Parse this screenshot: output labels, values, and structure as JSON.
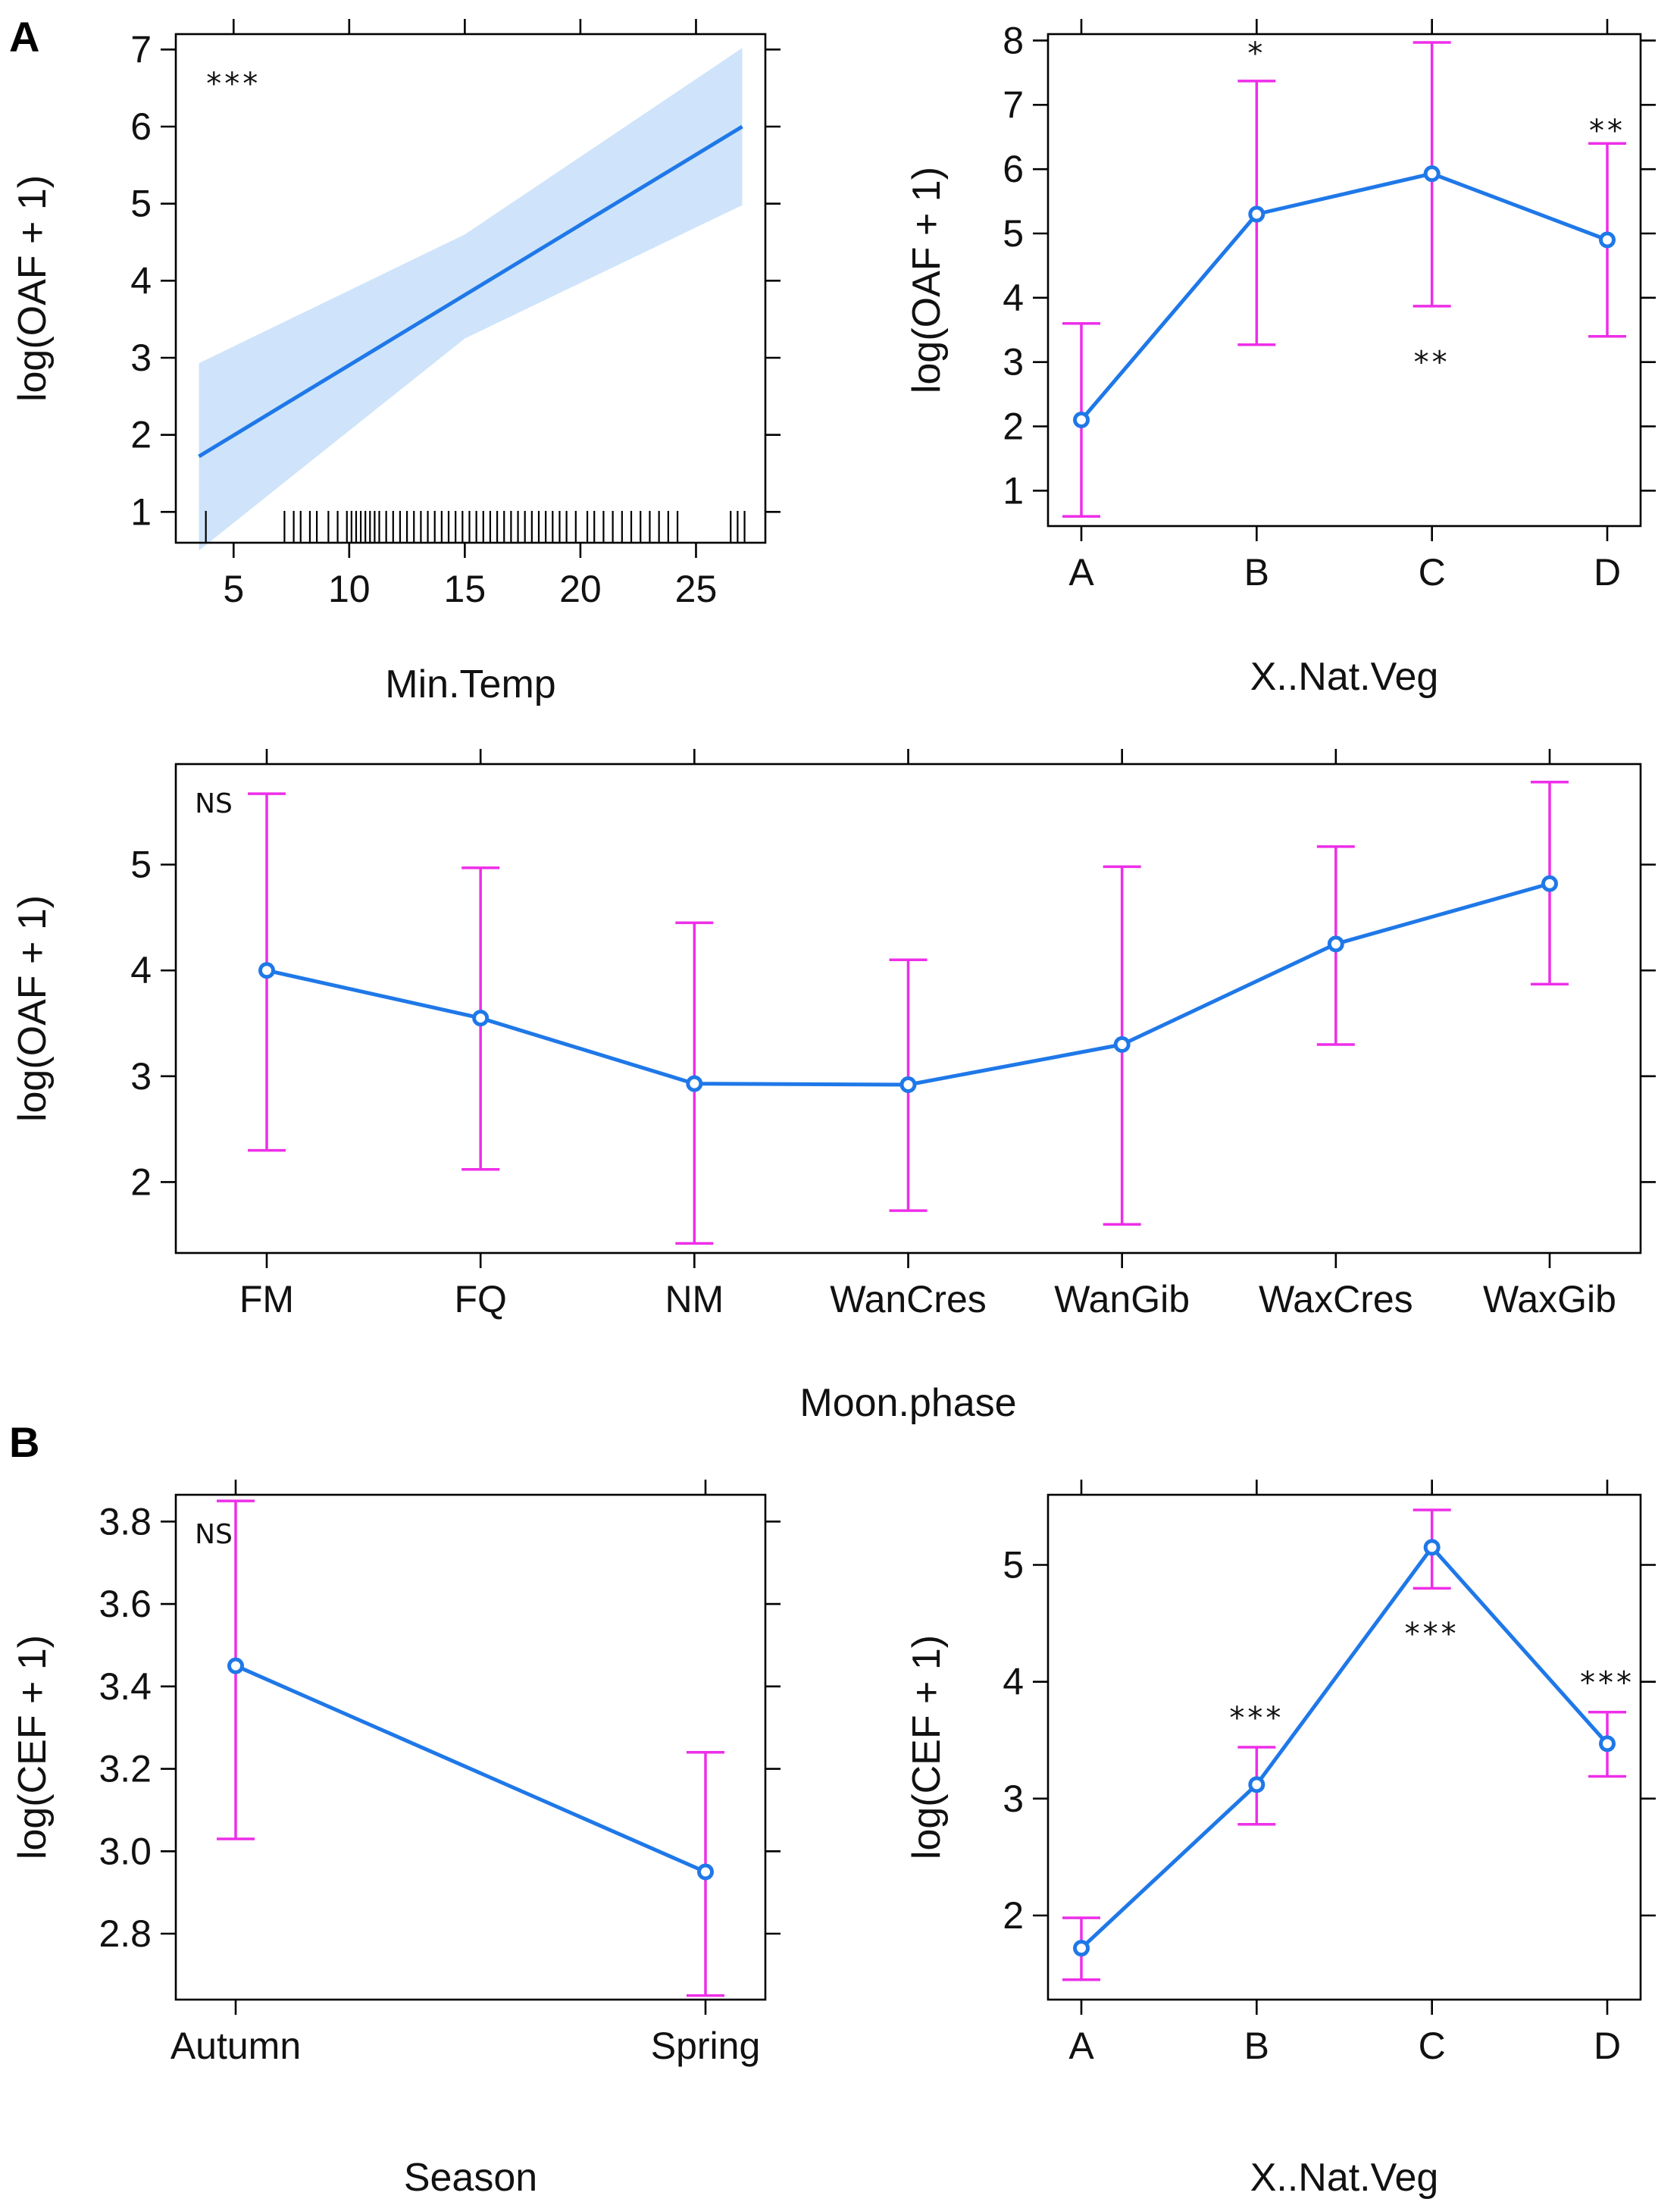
{
  "figure": {
    "panel_labels": [
      "A",
      "B"
    ]
  },
  "colors": {
    "line": "#1f78e8",
    "band": "#cfe4fa",
    "errorbar": "#ee2ee8",
    "axis": "#000000",
    "rug": "#000000"
  },
  "chart_data": [
    {
      "id": "p1",
      "type": "line",
      "title": "",
      "xlabel": "Min.Temp",
      "ylabel": "log(OAF + 1)",
      "xlim": [
        2.5,
        28
      ],
      "ylim": [
        0.6,
        7.2
      ],
      "xticks": [
        5,
        10,
        15,
        20,
        25
      ],
      "yticks": [
        1,
        2,
        3,
        4,
        5,
        6,
        7
      ],
      "line": {
        "x": [
          3.5,
          27
        ],
        "y": [
          1.72,
          6.0
        ]
      },
      "band": {
        "x": [
          3.5,
          15,
          27
        ],
        "lower": [
          0.5,
          3.25,
          4.98
        ],
        "upper": [
          2.93,
          4.6,
          7.02
        ]
      },
      "rug": [
        3.8,
        7.2,
        7.6,
        7.9,
        8.3,
        8.6,
        9.1,
        9.5,
        9.9,
        10.1,
        10.3,
        10.5,
        10.7,
        10.9,
        11.1,
        11.3,
        11.6,
        11.9,
        12.2,
        12.5,
        12.8,
        13.1,
        13.4,
        13.7,
        14.0,
        14.3,
        14.6,
        14.9,
        15.2,
        15.5,
        15.8,
        16.1,
        16.4,
        16.7,
        17.0,
        17.3,
        17.6,
        17.9,
        18.2,
        18.5,
        18.8,
        19.1,
        19.4,
        19.8,
        20.3,
        20.6,
        21.0,
        21.4,
        21.8,
        22.2,
        22.6,
        23.0,
        23.4,
        23.8,
        24.2,
        26.5,
        26.8,
        27.1
      ],
      "annotations": [
        {
          "text": "***",
          "x": 5.0,
          "y": 6.6
        }
      ]
    },
    {
      "id": "p2",
      "type": "line",
      "title": "",
      "xlabel": "X..Nat.Veg",
      "ylabel": "log(OAF + 1)",
      "categories": [
        "A",
        "B",
        "C",
        "D"
      ],
      "ylim": [
        0.45,
        8.1
      ],
      "yticks": [
        1,
        2,
        3,
        4,
        5,
        6,
        7,
        8
      ],
      "values": [
        2.1,
        5.3,
        5.93,
        4.9
      ],
      "lower": [
        0.6,
        3.27,
        3.87,
        3.4
      ],
      "upper": [
        3.6,
        7.37,
        7.97,
        6.4
      ],
      "annotations": [
        {
          "text": "*",
          "category": "B",
          "y": 7.85
        },
        {
          "text": "**",
          "category": "C",
          "y": 3.05
        },
        {
          "text": "**",
          "category": "D",
          "y": 6.65
        }
      ]
    },
    {
      "id": "p3",
      "type": "line",
      "title": "",
      "xlabel": "Moon.phase",
      "ylabel": "log(OAF + 1)",
      "categories": [
        "FM",
        "FQ",
        "NM",
        "WanCres",
        "WanGib",
        "WaxCres",
        "WaxGib"
      ],
      "ylim": [
        1.33,
        5.95
      ],
      "yticks": [
        2,
        3,
        4,
        5
      ],
      "values": [
        4.0,
        3.55,
        2.93,
        2.92,
        3.3,
        4.25,
        4.82
      ],
      "lower": [
        2.3,
        2.12,
        1.42,
        1.73,
        1.6,
        3.3,
        3.87
      ],
      "upper": [
        5.67,
        4.97,
        4.45,
        4.1,
        4.98,
        5.17,
        5.78
      ],
      "annotations": [
        {
          "text": "NS",
          "position": "top-left"
        }
      ]
    },
    {
      "id": "p4",
      "type": "line",
      "title": "",
      "xlabel": "Season",
      "ylabel": "log(CEF + 1)",
      "categories": [
        "Autumn",
        "Spring"
      ],
      "ylim": [
        2.64,
        3.865
      ],
      "yticks": [
        2.8,
        3.0,
        3.2,
        3.4,
        3.6,
        3.8
      ],
      "ytick_labels": [
        "2.8",
        "3.0",
        "3.2",
        "3.4",
        "3.6",
        "3.8"
      ],
      "values": [
        3.45,
        2.95
      ],
      "lower": [
        3.03,
        2.65
      ],
      "upper": [
        3.85,
        3.24
      ],
      "annotations": [
        {
          "text": "NS",
          "position": "top-left"
        }
      ]
    },
    {
      "id": "p5",
      "type": "line",
      "title": "",
      "xlabel": "X..Nat.Veg",
      "ylabel": "log(CEF + 1)",
      "categories": [
        "A",
        "B",
        "C",
        "D"
      ],
      "ylim": [
        1.28,
        5.6
      ],
      "yticks": [
        2,
        3,
        4,
        5
      ],
      "values": [
        1.72,
        3.12,
        5.15,
        3.47
      ],
      "lower": [
        1.45,
        2.78,
        4.8,
        3.19
      ],
      "upper": [
        1.98,
        3.44,
        5.47,
        3.74
      ],
      "annotations": [
        {
          "text": "***",
          "category": "B",
          "y": 3.72
        },
        {
          "text": "***",
          "category": "C",
          "y": 4.44
        },
        {
          "text": "***",
          "category": "D",
          "y": 4.02
        }
      ]
    }
  ]
}
